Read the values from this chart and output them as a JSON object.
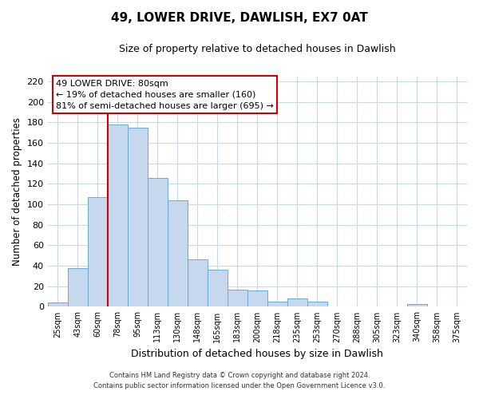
{
  "title": "49, LOWER DRIVE, DAWLISH, EX7 0AT",
  "subtitle": "Size of property relative to detached houses in Dawlish",
  "xlabel": "Distribution of detached houses by size in Dawlish",
  "ylabel": "Number of detached properties",
  "bar_labels": [
    "25sqm",
    "43sqm",
    "60sqm",
    "78sqm",
    "95sqm",
    "113sqm",
    "130sqm",
    "148sqm",
    "165sqm",
    "183sqm",
    "200sqm",
    "218sqm",
    "235sqm",
    "253sqm",
    "270sqm",
    "288sqm",
    "305sqm",
    "323sqm",
    "340sqm",
    "358sqm",
    "375sqm"
  ],
  "bar_heights": [
    4,
    38,
    107,
    178,
    175,
    126,
    104,
    46,
    36,
    17,
    16,
    5,
    8,
    5,
    0,
    0,
    0,
    0,
    3,
    0,
    0
  ],
  "bar_color": "#c5d8ee",
  "bar_edge_color": "#6aaad4",
  "vline_index": 3,
  "vline_color": "#cc0000",
  "annotation_box_text": "49 LOWER DRIVE: 80sqm\n← 19% of detached houses are smaller (160)\n81% of semi-detached houses are larger (695) →",
  "annotation_box_edge_color": "#cc0000",
  "ylim": [
    0,
    225
  ],
  "yticks": [
    0,
    20,
    40,
    60,
    80,
    100,
    120,
    140,
    160,
    180,
    200,
    220
  ],
  "footer_line1": "Contains HM Land Registry data © Crown copyright and database right 2024.",
  "footer_line2": "Contains public sector information licensed under the Open Government Licence v3.0.",
  "background_color": "#ffffff",
  "grid_color": "#c8d8e8",
  "fig_width": 6.0,
  "fig_height": 5.0
}
